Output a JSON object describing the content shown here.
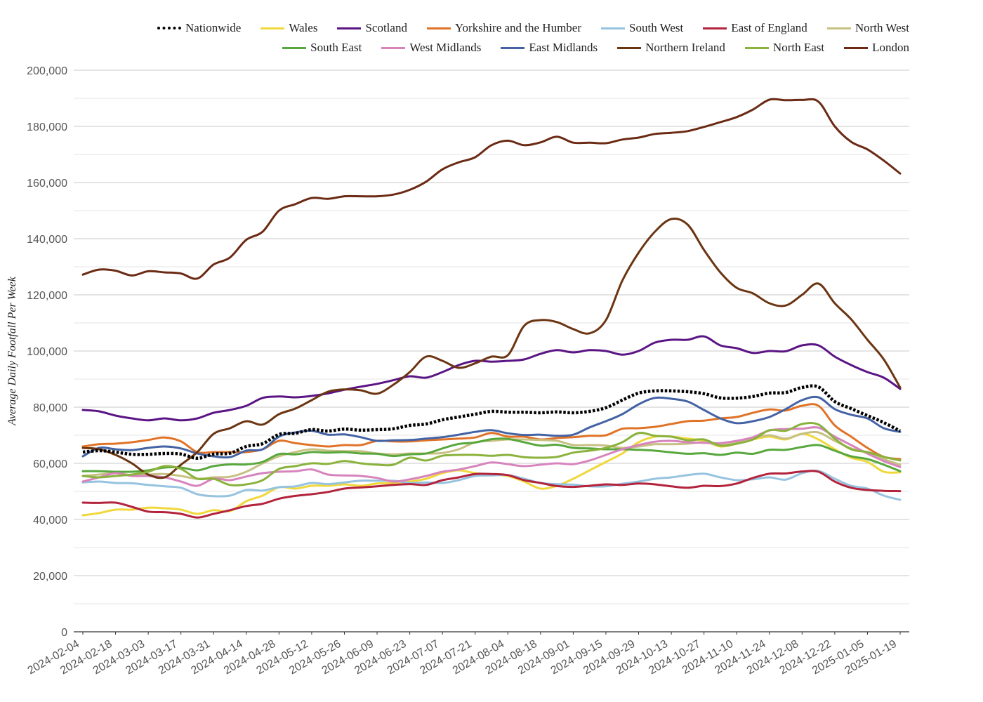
{
  "chart_data": {
    "type": "line",
    "title": "",
    "xlabel": "",
    "ylabel": "Average Daily Footfall Per Week",
    "ylim": [
      0,
      200000
    ],
    "yticks": [
      0,
      20000,
      40000,
      60000,
      80000,
      100000,
      120000,
      140000,
      160000,
      180000,
      200000
    ],
    "ytick_labels": [
      "0",
      "20,000",
      "40,000",
      "60,000",
      "80,000",
      "100,000",
      "120,000",
      "140,000",
      "160,000",
      "180,000",
      "200,000"
    ],
    "grid": true,
    "legend_position": "top",
    "x_tick_labels": [
      "2024-02-04",
      "2024-02-18",
      "2024-03-03",
      "2024-03-17",
      "2024-03-31",
      "2024-04-14",
      "2024-04-28",
      "2024-05-12",
      "2024-05-26",
      "2024-06-09",
      "2024-06-23",
      "2024-07-07",
      "2024-07-21",
      "2024-08-04",
      "2024-08-18",
      "2024-09-01",
      "2024-09-15",
      "2024-09-29",
      "2024-10-13",
      "2024-10-27",
      "2024-11-10",
      "2024-11-24",
      "2024-12-08",
      "2024-12-22",
      "2025-01-05",
      "2025-01-19"
    ],
    "x": [
      "2024-02-04",
      "2024-02-11",
      "2024-02-18",
      "2024-02-25",
      "2024-03-03",
      "2024-03-10",
      "2024-03-17",
      "2024-03-24",
      "2024-03-31",
      "2024-04-07",
      "2024-04-14",
      "2024-04-21",
      "2024-04-28",
      "2024-05-05",
      "2024-05-12",
      "2024-05-19",
      "2024-05-26",
      "2024-06-02",
      "2024-06-09",
      "2024-06-16",
      "2024-06-23",
      "2024-06-30",
      "2024-07-07",
      "2024-07-14",
      "2024-07-21",
      "2024-07-28",
      "2024-08-04",
      "2024-08-11",
      "2024-08-18",
      "2024-08-25",
      "2024-09-01",
      "2024-09-08",
      "2024-09-15",
      "2024-09-22",
      "2024-09-29",
      "2024-10-06",
      "2024-10-13",
      "2024-10-20",
      "2024-10-27",
      "2024-11-03",
      "2024-11-10",
      "2024-11-17",
      "2024-11-24",
      "2024-12-01",
      "2024-12-08",
      "2024-12-15",
      "2024-12-22",
      "2024-12-29",
      "2025-01-05",
      "2025-01-12",
      "2025-01-19"
    ],
    "series": [
      {
        "name": "Nationwide",
        "color": "#000000",
        "style": "dotted",
        "values": [
          64000,
          64500,
          64000,
          63200,
          63200,
          63500,
          63300,
          61800,
          63300,
          63600,
          66000,
          67000,
          70300,
          70700,
          72000,
          71500,
          72200,
          71800,
          72000,
          72300,
          73500,
          74000,
          75500,
          76500,
          77500,
          78500,
          78200,
          78200,
          78000,
          78300,
          78000,
          78500,
          79800,
          82500,
          85000,
          85800,
          85800,
          85500,
          84800,
          83300,
          83200,
          83800,
          85000,
          85200,
          87000,
          87200,
          82000,
          79500,
          77000,
          74500,
          71500
        ]
      },
      {
        "name": "Wales",
        "color": "#f0d83c",
        "style": "solid",
        "values": [
          41500,
          42300,
          43500,
          43500,
          44200,
          44000,
          43500,
          42000,
          43300,
          43000,
          46500,
          48500,
          51500,
          51000,
          52000,
          52000,
          52500,
          52000,
          52800,
          53000,
          53500,
          54500,
          56500,
          57500,
          56500,
          56000,
          55500,
          53500,
          51000,
          52000,
          54500,
          57500,
          60500,
          63500,
          67500,
          69500,
          69500,
          68800,
          68000,
          66000,
          67000,
          68500,
          69500,
          68500,
          70500,
          68500,
          65000,
          62000,
          60500,
          57000,
          56800
        ]
      },
      {
        "name": "Scotland",
        "color": "#5b1484",
        "style": "solid",
        "values": [
          79000,
          78500,
          77000,
          76000,
          75300,
          76000,
          75300,
          76000,
          78000,
          79000,
          80500,
          83300,
          83800,
          83500,
          84000,
          84900,
          86200,
          87300,
          88300,
          89600,
          91000,
          90500,
          92500,
          95000,
          96500,
          96200,
          96500,
          97000,
          99000,
          100300,
          99500,
          100300,
          100000,
          98700,
          100000,
          103000,
          104000,
          104000,
          105200,
          102000,
          101000,
          99300,
          100000,
          99900,
          102000,
          102000,
          98000,
          95000,
          92500,
          90500,
          86500
        ]
      },
      {
        "name": "Yorkshire and the Humber",
        "color": "#e07328",
        "style": "solid",
        "values": [
          66000,
          66800,
          67000,
          67500,
          68300,
          69200,
          67800,
          64000,
          64000,
          64000,
          64000,
          65000,
          68000,
          67200,
          66500,
          66000,
          66500,
          66500,
          68000,
          67800,
          67800,
          68200,
          68500,
          68800,
          69200,
          70800,
          69500,
          69500,
          68500,
          69000,
          69300,
          69800,
          70000,
          72300,
          72500,
          73000,
          74000,
          75000,
          75200,
          76000,
          76500,
          78000,
          79200,
          78800,
          80500,
          80500,
          73500,
          69500,
          65500,
          62300,
          61500
        ]
      },
      {
        "name": "South West",
        "color": "#96c3df",
        "style": "solid",
        "values": [
          53200,
          53500,
          53000,
          52900,
          52300,
          51800,
          51300,
          49000,
          48300,
          48500,
          50500,
          50300,
          51500,
          51800,
          53000,
          52600,
          53200,
          53800,
          53800,
          53800,
          53000,
          53200,
          53000,
          54000,
          55500,
          55700,
          55800,
          54500,
          53000,
          52600,
          52400,
          51800,
          51800,
          52700,
          53500,
          54500,
          55000,
          55800,
          56300,
          55000,
          54000,
          54300,
          55000,
          54200,
          56500,
          57300,
          54500,
          52000,
          51000,
          48500,
          47000
        ]
      },
      {
        "name": "East of England",
        "color": "#b3233c",
        "style": "solid",
        "values": [
          46000,
          45900,
          46000,
          44500,
          42800,
          42600,
          42000,
          40700,
          42000,
          43300,
          44800,
          45600,
          47400,
          48400,
          49000,
          49800,
          51000,
          51400,
          51800,
          52300,
          52600,
          52300,
          54000,
          55000,
          56200,
          56200,
          55800,
          54000,
          53000,
          51900,
          51600,
          52000,
          52500,
          52300,
          52800,
          52500,
          51800,
          51300,
          52000,
          51900,
          52800,
          54800,
          56300,
          56400,
          57100,
          57000,
          53500,
          51300,
          50500,
          50200,
          50100
        ]
      },
      {
        "name": "North West",
        "color": "#c7c083",
        "style": "solid",
        "values": [
          55500,
          56000,
          56500,
          55800,
          56000,
          56200,
          55500,
          54500,
          55000,
          55200,
          57000,
          60000,
          62500,
          64000,
          65000,
          64500,
          64300,
          64300,
          63500,
          63200,
          63500,
          63500,
          63700,
          65000,
          67500,
          68000,
          68500,
          68500,
          68300,
          68000,
          66500,
          66500,
          66300,
          65500,
          66000,
          66800,
          66800,
          67000,
          67500,
          66500,
          67300,
          69000,
          70000,
          68800,
          70500,
          71000,
          68000,
          65300,
          63800,
          61500,
          59500
        ]
      },
      {
        "name": "South East",
        "color": "#58a83d",
        "style": "solid",
        "values": [
          57200,
          57200,
          57000,
          57000,
          57500,
          58500,
          58500,
          57500,
          59000,
          59600,
          59600,
          60500,
          63300,
          63200,
          64000,
          63800,
          64000,
          63500,
          63400,
          62600,
          63200,
          63500,
          65300,
          66900,
          67400,
          68600,
          68700,
          67500,
          66300,
          66600,
          65500,
          65300,
          65000,
          65000,
          64800,
          64500,
          63900,
          63400,
          63600,
          63000,
          63800,
          63400,
          64800,
          64800,
          65800,
          66500,
          64500,
          62500,
          61500,
          59500,
          57200
        ]
      },
      {
        "name": "West Midlands",
        "color": "#d784bd",
        "style": "solid",
        "values": [
          53500,
          55000,
          56500,
          55500,
          55500,
          55000,
          53500,
          52000,
          54500,
          54000,
          55300,
          56500,
          57000,
          57200,
          57800,
          56000,
          55700,
          55500,
          54800,
          53500,
          54300,
          55500,
          57000,
          57800,
          59000,
          60300,
          59700,
          59000,
          59500,
          60000,
          59700,
          61000,
          63000,
          65000,
          66500,
          67700,
          68000,
          67500,
          67300,
          67200,
          68000,
          69300,
          71700,
          72200,
          72300,
          72700,
          69500,
          66500,
          63500,
          60800,
          58700
        ]
      },
      {
        "name": "East Midlands",
        "color": "#4463a4",
        "style": "solid",
        "values": [
          62500,
          65500,
          65000,
          64700,
          65500,
          66000,
          65300,
          63500,
          62500,
          62200,
          64500,
          65000,
          69500,
          71000,
          71600,
          70200,
          70300,
          69300,
          68000,
          68200,
          68300,
          68800,
          69300,
          70200,
          71200,
          71800,
          70700,
          70100,
          70200,
          69800,
          70200,
          72800,
          75000,
          77500,
          81000,
          83300,
          83000,
          82000,
          79000,
          76000,
          74300,
          75000,
          76500,
          79300,
          82500,
          83500,
          79300,
          77300,
          76000,
          72500,
          71200
        ]
      },
      {
        "name": "Northern Ireland",
        "color": "#6b3512",
        "style": "solid",
        "values": [
          65500,
          65000,
          63000,
          60000,
          56000,
          55000,
          59500,
          64000,
          70500,
          72500,
          75000,
          73800,
          77500,
          79500,
          82500,
          85500,
          86300,
          86000,
          84800,
          88000,
          92500,
          98000,
          96500,
          94000,
          95600,
          98000,
          98500,
          109000,
          111000,
          110300,
          107800,
          106300,
          111000,
          125000,
          135000,
          142500,
          147000,
          145000,
          136000,
          128000,
          122500,
          120500,
          117000,
          116200,
          120000,
          124000,
          117000,
          111300,
          104000,
          97000,
          87000
        ]
      },
      {
        "name": "North East",
        "color": "#8ab23c",
        "style": "solid",
        "values": [
          55500,
          55000,
          55500,
          56000,
          57000,
          59000,
          58000,
          54500,
          54500,
          52300,
          52500,
          54000,
          58000,
          59000,
          60000,
          59800,
          60800,
          60000,
          59500,
          59500,
          62000,
          61000,
          62700,
          63000,
          63000,
          62700,
          63000,
          62200,
          62000,
          62300,
          63800,
          64500,
          65500,
          67500,
          70800,
          69800,
          69500,
          68200,
          68500,
          66300,
          67000,
          68500,
          71800,
          71600,
          74000,
          73800,
          68800,
          65000,
          64000,
          62300,
          61000
        ]
      },
      {
        "name": "London",
        "color": "#6b2a14",
        "style": "solid",
        "values": [
          127200,
          129000,
          128600,
          126900,
          128400,
          128000,
          127600,
          125800,
          130800,
          133300,
          139600,
          142500,
          150000,
          152300,
          154500,
          154200,
          155100,
          155100,
          155100,
          155700,
          157400,
          160300,
          164700,
          167200,
          169000,
          173300,
          174900,
          173300,
          174300,
          176300,
          174200,
          174200,
          174000,
          175300,
          176000,
          177300,
          177700,
          178300,
          179800,
          181500,
          183300,
          186000,
          189500,
          189300,
          189400,
          188800,
          180000,
          174500,
          171800,
          167800,
          163200
        ]
      }
    ]
  }
}
